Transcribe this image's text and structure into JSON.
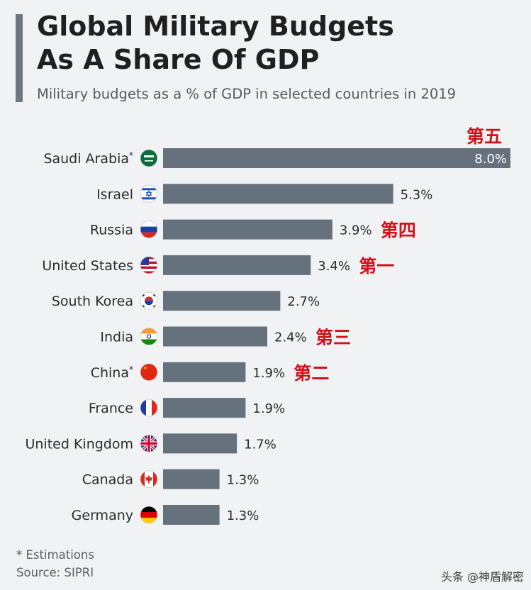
{
  "header": {
    "title_line1": "Global Military Budgets",
    "title_line2": "As A Share Of GDP",
    "subtitle": "Military budgets as a % of GDP in selected countries in 2019"
  },
  "chart_data": {
    "type": "bar",
    "orientation": "horizontal",
    "title": "Global Military Budgets As A Share Of GDP",
    "subtitle": "Military budgets as a % of GDP in selected countries in 2019",
    "xlabel": "",
    "ylabel": "",
    "xlim": [
      0,
      8.0
    ],
    "grid": false,
    "value_suffix": "%",
    "bar_color": "#65727e",
    "categories": [
      "Saudi Arabia",
      "Israel",
      "Russia",
      "United States",
      "South Korea",
      "India",
      "China",
      "France",
      "United Kingdom",
      "Canada",
      "Germany"
    ],
    "values": [
      8.0,
      5.3,
      3.9,
      3.4,
      2.7,
      2.4,
      1.9,
      1.9,
      1.7,
      1.3,
      1.3
    ],
    "value_labels": [
      "8.0%",
      "5.3%",
      "3.9%",
      "3.4%",
      "2.7%",
      "2.4%",
      "1.9%",
      "1.9%",
      "1.7%",
      "1.3%",
      "1.3%"
    ],
    "estimated": [
      true,
      false,
      false,
      false,
      false,
      false,
      true,
      false,
      false,
      false,
      false
    ],
    "estimate_marker": "*",
    "flag_icons": [
      "saudi-arabia-flag-icon",
      "israel-flag-icon",
      "russia-flag-icon",
      "united-states-flag-icon",
      "south-korea-flag-icon",
      "india-flag-icon",
      "china-flag-icon",
      "france-flag-icon",
      "united-kingdom-flag-icon",
      "canada-flag-icon",
      "germany-flag-icon"
    ],
    "annotations": [
      {
        "category": "Saudi Arabia",
        "text": "第五",
        "placement": "above-end"
      },
      {
        "category": "Russia",
        "text": "第四",
        "placement": "after-value"
      },
      {
        "category": "United States",
        "text": "第一",
        "placement": "after-value"
      },
      {
        "category": "India",
        "text": "第三",
        "placement": "after-value"
      },
      {
        "category": "China",
        "text": "第二",
        "placement": "after-value"
      }
    ],
    "annotation_color": "#d4101a"
  },
  "footer": {
    "note": "* Estimations",
    "source": "Source: SIPRI"
  },
  "watermark": "头条 @神盾解密"
}
